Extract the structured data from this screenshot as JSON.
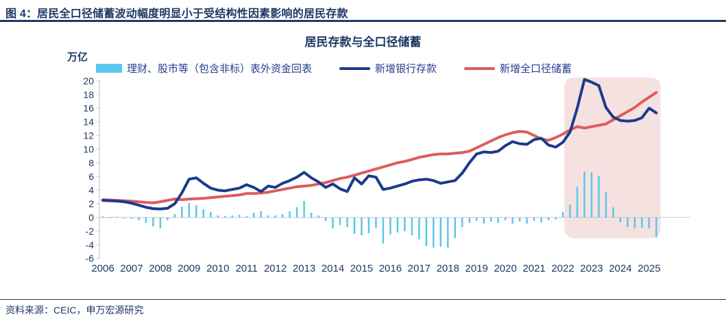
{
  "header": {
    "title": "图 4：居民全口径储蓄波动幅度明显小于受结构性因素影响的居民存款"
  },
  "footer": {
    "source": "资料来源：CEIC，申万宏源研究"
  },
  "chart": {
    "title": "居民存款与全口径储蓄",
    "unit_label": "万亿"
  },
  "chart_data": {
    "type": "combo",
    "title": "居民存款与全口径储蓄",
    "ylabel": "万亿",
    "x_unit": "quarterly (2006Q1 - 2025Q2)",
    "years": [
      "2006",
      "2007",
      "2008",
      "2009",
      "2010",
      "2011",
      "2012",
      "2013",
      "2014",
      "2015",
      "2016",
      "2017",
      "2018",
      "2019",
      "2020",
      "2021",
      "2022",
      "2023",
      "2024",
      "2025"
    ],
    "ylim": [
      -6,
      20
    ],
    "ytick_step": 2,
    "grid": false,
    "legend_position": "top",
    "label_color": "#1f3864",
    "axis_color": "#c9d0da",
    "series": [
      {
        "name": "理财、股市等（包含非标）表外资金回表",
        "type": "bar",
        "color": "#5bc6ec",
        "values": [
          0.15,
          -0.12,
          0.1,
          -0.15,
          -0.2,
          -0.4,
          -0.8,
          -1.3,
          -1.6,
          -0.4,
          0.5,
          1.6,
          2.1,
          1.8,
          1.2,
          0.8,
          0.3,
          0.2,
          0.3,
          0.4,
          0.2,
          0.7,
          0.9,
          0.3,
          0.3,
          0.5,
          0.9,
          1.5,
          2.4,
          0.7,
          0.3,
          -0.5,
          -1.6,
          -1.1,
          -1.4,
          -2.4,
          -2.6,
          -2.3,
          -1.5,
          -3.8,
          -2.5,
          -2.2,
          -2.0,
          -2.6,
          -3.2,
          -4.2,
          -4.4,
          -4.3,
          -4.4,
          -3.0,
          -1.4,
          -0.8,
          -0.5,
          -0.9,
          -0.6,
          -0.8,
          -0.4,
          -0.9,
          -0.6,
          -0.9,
          -0.5,
          -0.7,
          -0.4,
          -0.3,
          0.8,
          1.9,
          4.5,
          6.7,
          6.6,
          6.1,
          3.7,
          1.5,
          -0.7,
          -1.4,
          -1.6,
          -1.5,
          -1.6,
          -2.9
        ]
      },
      {
        "name": "新增银行存款",
        "type": "line",
        "color": "#1b3a8c",
        "values": [
          2.5,
          2.45,
          2.4,
          2.3,
          2.1,
          1.8,
          1.5,
          1.3,
          1.25,
          1.35,
          2.0,
          3.6,
          5.6,
          5.8,
          5.0,
          4.3,
          4.0,
          3.9,
          4.1,
          4.3,
          4.8,
          4.4,
          3.8,
          4.6,
          4.4,
          5.0,
          5.4,
          5.9,
          6.6,
          5.8,
          5.2,
          4.4,
          4.9,
          4.2,
          3.8,
          5.8,
          4.9,
          6.1,
          5.9,
          4.1,
          4.3,
          4.6,
          4.9,
          5.3,
          5.5,
          5.6,
          5.4,
          5.0,
          5.2,
          5.4,
          6.5,
          8.0,
          9.3,
          9.6,
          9.5,
          9.7,
          10.5,
          11.1,
          10.8,
          10.7,
          11.4,
          11.6,
          10.6,
          10.3,
          11.0,
          12.5,
          16.0,
          20.2,
          19.8,
          19.3,
          16.1,
          14.7,
          14.2,
          14.1,
          14.2,
          14.6,
          16.0,
          15.3
        ]
      },
      {
        "name": "新增全口径储蓄",
        "type": "line",
        "color": "#dd5c5c",
        "values": [
          2.6,
          2.55,
          2.5,
          2.45,
          2.4,
          2.3,
          2.2,
          2.15,
          2.3,
          2.5,
          2.7,
          2.6,
          2.7,
          2.75,
          2.8,
          2.9,
          3.0,
          3.1,
          3.2,
          3.3,
          3.5,
          3.5,
          3.6,
          3.7,
          3.9,
          4.1,
          4.3,
          4.5,
          4.6,
          4.7,
          4.9,
          5.1,
          5.4,
          5.7,
          5.9,
          6.2,
          6.5,
          6.8,
          7.1,
          7.4,
          7.7,
          8.0,
          8.2,
          8.5,
          8.8,
          9.0,
          9.2,
          9.3,
          9.3,
          9.4,
          9.5,
          9.7,
          10.2,
          10.7,
          11.2,
          11.7,
          12.1,
          12.4,
          12.6,
          12.5,
          12.0,
          11.5,
          11.3,
          11.7,
          12.2,
          12.8,
          13.3,
          13.1,
          13.3,
          13.5,
          13.7,
          14.3,
          14.9,
          15.5,
          16.1,
          16.9,
          17.6,
          18.3
        ]
      }
    ],
    "highlight": {
      "from_index": 64.2,
      "to_index": 77.6,
      "top_value": 20.5,
      "bottom_value": -3.05,
      "color": "#f6e1e1"
    }
  }
}
